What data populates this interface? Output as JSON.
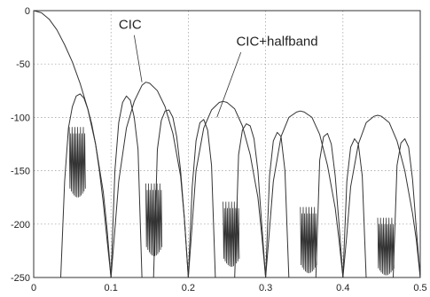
{
  "chart_data": {
    "type": "line",
    "title": "",
    "xlabel": "",
    "ylabel": "",
    "xlim": [
      0,
      0.5
    ],
    "ylim": [
      -250,
      0
    ],
    "xticks": [
      "0",
      "0.1",
      "0.2",
      "0.3",
      "0.4",
      "0.5"
    ],
    "yticks": [
      "0",
      "-50",
      "-100",
      "-150",
      "-200",
      "-250"
    ],
    "xtick_values": [
      0,
      0.1,
      0.2,
      0.3,
      0.4,
      0.5
    ],
    "ytick_values": [
      0,
      -50,
      -100,
      -150,
      -200,
      -250
    ],
    "grid": true,
    "line_color": "#333333",
    "annotations": [
      {
        "text": "CIC",
        "points_to": [
          0.14,
          -67
        ]
      },
      {
        "text": "CIC+halfband",
        "points_to": [
          0.237,
          -100
        ]
      }
    ],
    "series": [
      {
        "role": "CIC main envelope",
        "x": [
          0,
          0.01,
          0.02,
          0.03,
          0.04,
          0.05,
          0.06,
          0.07,
          0.08,
          0.09,
          0.095,
          0.1,
          0.105,
          0.11,
          0.12,
          0.13,
          0.14,
          0.145,
          0.15,
          0.16,
          0.17,
          0.18,
          0.19,
          0.195,
          0.2,
          0.205,
          0.21,
          0.22,
          0.23,
          0.24,
          0.245,
          0.25,
          0.26,
          0.27,
          0.28,
          0.29,
          0.295,
          0.3,
          0.305,
          0.31,
          0.32,
          0.33,
          0.34,
          0.345,
          0.35,
          0.36,
          0.37,
          0.38,
          0.39,
          0.395,
          0.4,
          0.405,
          0.41,
          0.42,
          0.43,
          0.44,
          0.445,
          0.45,
          0.46,
          0.47,
          0.48,
          0.49,
          0.495,
          0.5
        ],
        "y": [
          0,
          -2,
          -8,
          -18,
          -32,
          -48,
          -68,
          -92,
          -125,
          -170,
          -205,
          -250,
          -205,
          -160,
          -110,
          -85,
          -70,
          -67,
          -68,
          -75,
          -90,
          -115,
          -155,
          -195,
          -250,
          -200,
          -150,
          -110,
          -93,
          -86,
          -85,
          -86,
          -92,
          -108,
          -135,
          -175,
          -210,
          -250,
          -205,
          -160,
          -118,
          -100,
          -95,
          -94,
          -95,
          -100,
          -116,
          -145,
          -185,
          -215,
          -250,
          -210,
          -165,
          -125,
          -105,
          -99,
          -98,
          -99,
          -105,
          -122,
          -150,
          -190,
          -215,
          -250
        ]
      },
      {
        "role": "CIC+halfband passband lobes",
        "segments": [
          {
            "x": [
              0.035,
              0.04,
              0.045,
              0.05,
              0.055,
              0.06,
              0.065,
              0.07,
              0.075,
              0.08,
              0.085,
              0.09,
              0.095,
              0.1
            ],
            "y": [
              -250,
              -160,
              -110,
              -90,
              -80,
              -78,
              -82,
              -92,
              -106,
              -125,
              -150,
              -180,
              -215,
              -250
            ]
          },
          {
            "x": [
              0.1,
              0.105,
              0.11,
              0.115,
              0.12,
              0.125,
              0.13,
              0.135,
              0.14
            ],
            "y": [
              -250,
              -150,
              -105,
              -86,
              -80,
              -84,
              -100,
              -130,
              -250
            ]
          },
          {
            "x": [
              0.155,
              0.16,
              0.165,
              0.17,
              0.175,
              0.18,
              0.185,
              0.19,
              0.195,
              0.2
            ],
            "y": [
              -250,
              -130,
              -103,
              -94,
              -93,
              -100,
              -118,
              -150,
              -195,
              -250
            ]
          },
          {
            "x": [
              0.2,
              0.205,
              0.21,
              0.215,
              0.22,
              0.225,
              0.23,
              0.235
            ],
            "y": [
              -250,
              -165,
              -122,
              -105,
              -102,
              -112,
              -145,
              -250
            ]
          },
          {
            "x": [
              0.26,
              0.265,
              0.27,
              0.275,
              0.28,
              0.285,
              0.29,
              0.295,
              0.3
            ],
            "y": [
              -250,
              -135,
              -112,
              -106,
              -108,
              -120,
              -150,
              -200,
              -250
            ]
          },
          {
            "x": [
              0.3,
              0.305,
              0.31,
              0.315,
              0.32,
              0.325,
              0.33
            ],
            "y": [
              -250,
              -155,
              -122,
              -114,
              -118,
              -150,
              -250
            ]
          },
          {
            "x": [
              0.365,
              0.37,
              0.375,
              0.38,
              0.385,
              0.39,
              0.395,
              0.4
            ],
            "y": [
              -250,
              -140,
              -118,
              -115,
              -125,
              -155,
              -200,
              -250
            ]
          },
          {
            "x": [
              0.4,
              0.405,
              0.41,
              0.415,
              0.42,
              0.425,
              0.43
            ],
            "y": [
              -250,
              -160,
              -128,
              -120,
              -125,
              -155,
              -250
            ]
          },
          {
            "x": [
              0.465,
              0.47,
              0.475,
              0.48,
              0.485,
              0.49,
              0.495,
              0.5
            ],
            "y": [
              -250,
              -145,
              -124,
              -120,
              -128,
              -158,
              -205,
              -250
            ]
          }
        ]
      },
      {
        "role": "CIC+halfband stopband ripple",
        "bursts": [
          {
            "x_start": 0.046,
            "x_end": 0.066,
            "top": -115,
            "bottom": -175
          },
          {
            "x_start": 0.145,
            "x_end": 0.165,
            "top": -168,
            "bottom": -230
          },
          {
            "x_start": 0.245,
            "x_end": 0.265,
            "top": -185,
            "bottom": -240
          },
          {
            "x_start": 0.345,
            "x_end": 0.365,
            "top": -190,
            "bottom": -246
          },
          {
            "x_start": 0.445,
            "x_end": 0.465,
            "top": -200,
            "bottom": -248
          }
        ]
      }
    ]
  }
}
